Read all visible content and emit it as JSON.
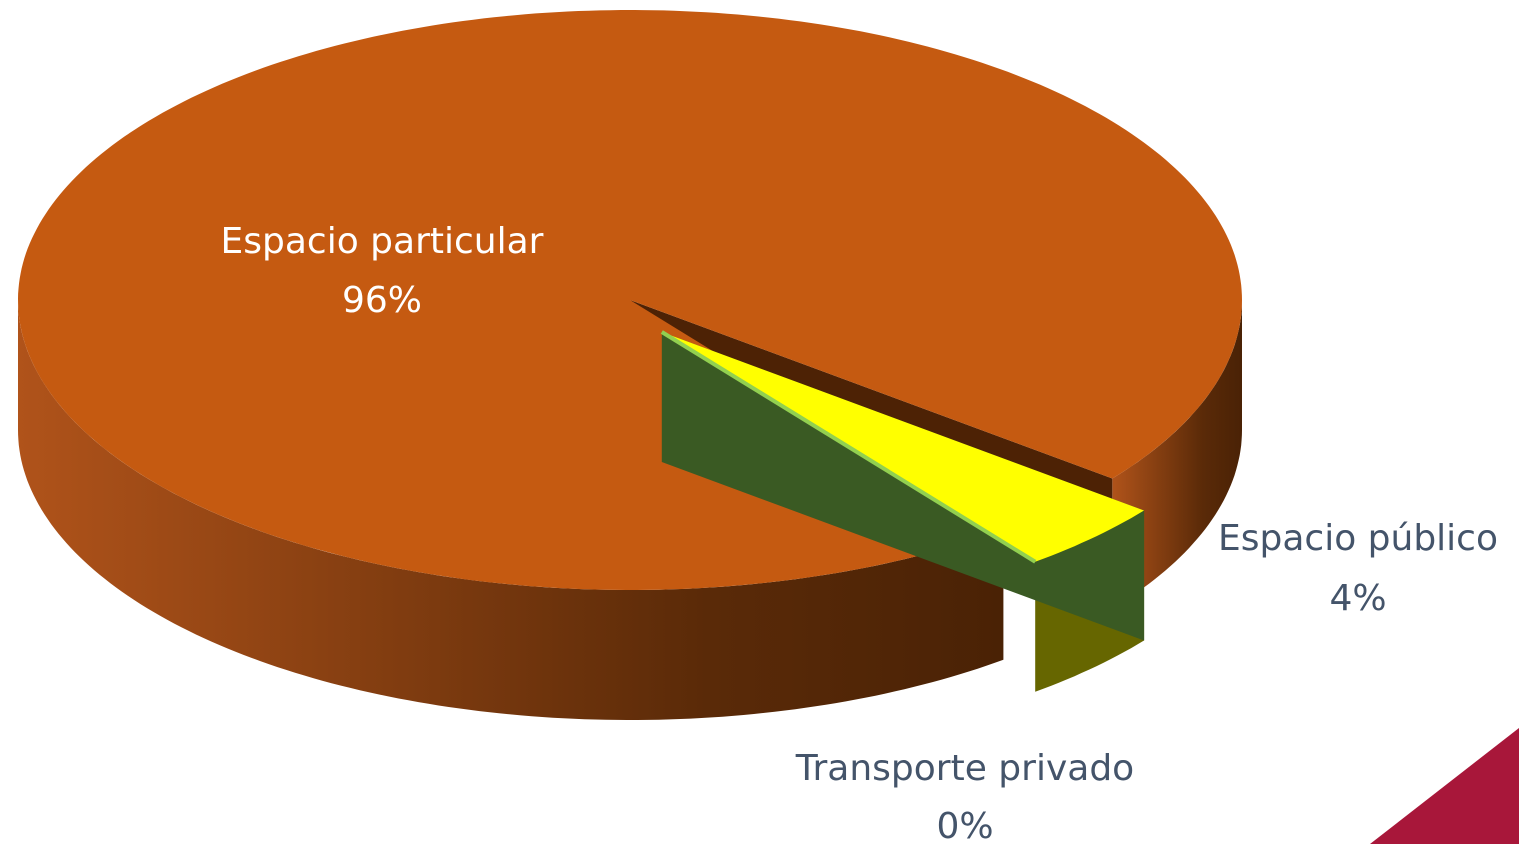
{
  "chart_data": {
    "type": "pie3d",
    "categories": [
      "Espacio particular",
      "Espacio público",
      "Transporte privado"
    ],
    "values": [
      96,
      4,
      0
    ],
    "value_labels": [
      "96%",
      "4%",
      "0%"
    ],
    "colors": [
      "#c55a11",
      "#ffff00",
      "#92d050"
    ]
  }
}
